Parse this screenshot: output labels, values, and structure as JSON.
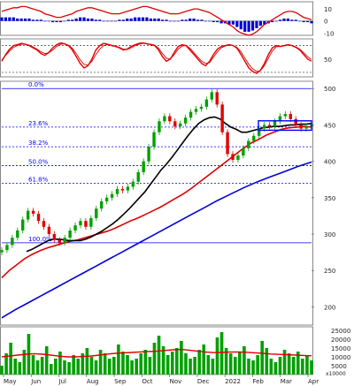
{
  "colors": {
    "fib_line": "#0000ff",
    "ma_short": "#000000",
    "ma_mid": "#e00000",
    "ma_long": "#0000dd",
    "candle_up": "#00a000",
    "candle_down": "#e00000",
    "macd_signal": "#e00000",
    "volume_bar": "#00a000",
    "box": "#0000ff"
  },
  "chart_data": [
    {
      "type": "bar",
      "name": "macd-panel",
      "ylim": [
        -12,
        16
      ],
      "y_ticks": [
        "10",
        "0",
        "-10"
      ],
      "histogram": [
        3,
        3,
        3,
        3,
        2,
        2,
        2,
        2,
        1,
        1,
        1,
        0,
        0,
        -1,
        -1,
        -1,
        0,
        1,
        1,
        2,
        3,
        3,
        2,
        2,
        1,
        1,
        0,
        0,
        0,
        0,
        1,
        1,
        2,
        2,
        3,
        3,
        3,
        3,
        2,
        2,
        2,
        1,
        1,
        0,
        0,
        0,
        1,
        1,
        2,
        2,
        1,
        1,
        0,
        0,
        -1,
        -1,
        -2,
        -2,
        -3,
        -3,
        -5,
        -7,
        -9,
        -9,
        -8,
        -6,
        -4,
        -3,
        -2,
        -1,
        0,
        1,
        2,
        2,
        1,
        1,
        0,
        -1,
        -1,
        -2
      ],
      "macd_line": [
        8,
        9,
        10,
        11,
        11,
        12,
        12,
        11,
        10,
        9,
        8,
        6,
        5,
        4,
        3,
        3,
        4,
        5,
        6,
        8,
        9,
        10,
        11,
        11,
        10,
        9,
        8,
        7,
        6,
        6,
        6,
        7,
        8,
        9,
        10,
        11,
        12,
        12,
        11,
        10,
        9,
        8,
        7,
        6,
        6,
        6,
        7,
        8,
        9,
        10,
        10,
        9,
        8,
        7,
        5,
        3,
        1,
        -1,
        -3,
        -5,
        -8,
        -10,
        -11,
        -12,
        -11,
        -9,
        -6,
        -3,
        -1,
        1,
        3,
        5,
        7,
        8,
        8,
        7,
        5,
        3,
        2,
        1
      ]
    },
    {
      "type": "line",
      "name": "oscillator-panel",
      "ylim": [
        10,
        95
      ],
      "y_ticks": [
        "50"
      ],
      "reference_levels": [
        80,
        20
      ],
      "series": [
        {
          "values": [
            45,
            60,
            72,
            80,
            82,
            85,
            83,
            80,
            75,
            70,
            62,
            58,
            65,
            75,
            82,
            86,
            84,
            80,
            70,
            55,
            40,
            30,
            35,
            50,
            70,
            80,
            85,
            83,
            80,
            78,
            75,
            70,
            72,
            78,
            82,
            85,
            86,
            84,
            82,
            80,
            70,
            55,
            45,
            50,
            65,
            78,
            82,
            80,
            70,
            60,
            50,
            40,
            35,
            45,
            60,
            72,
            78,
            80,
            82,
            80,
            74,
            60,
            45,
            30,
            22,
            18,
            25,
            40,
            60,
            75,
            80,
            78,
            80,
            82,
            80,
            76,
            70,
            60,
            50,
            45
          ]
        },
        {
          "values": [
            48,
            58,
            68,
            76,
            80,
            83,
            83,
            81,
            77,
            72,
            66,
            62,
            64,
            70,
            78,
            83,
            84,
            81,
            74,
            62,
            48,
            38,
            36,
            45,
            60,
            72,
            80,
            82,
            81,
            79,
            76,
            72,
            71,
            75,
            80,
            83,
            85,
            84,
            83,
            81,
            74,
            62,
            52,
            50,
            60,
            72,
            79,
            80,
            74,
            64,
            54,
            45,
            40,
            42,
            54,
            66,
            75,
            79,
            81,
            80,
            76,
            66,
            52,
            38,
            28,
            22,
            24,
            35,
            52,
            68,
            77,
            78,
            79,
            81,
            80,
            77,
            72,
            64,
            55,
            49
          ]
        }
      ]
    },
    {
      "type": "line",
      "name": "price-panel",
      "ylim": [
        175,
        510
      ],
      "y_ticks": [
        "500",
        "450",
        "400",
        "350",
        "300",
        "250",
        "200"
      ],
      "fibonacci_levels": [
        {
          "label": "0.0%",
          "value": 500
        },
        {
          "label": "23.6%",
          "value": 447
        },
        {
          "label": "38.2%",
          "value": 420
        },
        {
          "label": "50.0%",
          "value": 394
        },
        {
          "label": "61.8%",
          "value": 370
        },
        {
          "label": "100.0%",
          "value": 288
        }
      ],
      "x_ticks": [
        "May",
        "Jun",
        "Jul",
        "Aug",
        "Sep",
        "Oct",
        "Nov",
        "Dec",
        "2022",
        "Feb",
        "Mar",
        "Apr"
      ],
      "close": [
        278,
        285,
        295,
        305,
        320,
        332,
        328,
        318,
        310,
        300,
        292,
        288,
        295,
        305,
        312,
        318,
        310,
        322,
        335,
        345,
        350,
        355,
        362,
        360,
        365,
        372,
        385,
        400,
        420,
        440,
        455,
        462,
        455,
        448,
        452,
        460,
        468,
        472,
        475,
        485,
        495,
        478,
        440,
        410,
        402,
        408,
        418,
        428,
        435,
        445,
        450,
        448,
        455,
        462,
        465,
        458,
        450,
        445,
        448,
        450
      ],
      "ma_short": [
        276,
        279,
        283,
        287,
        291,
        293,
        293,
        292,
        291,
        291,
        291,
        293,
        296,
        300,
        304,
        309,
        314,
        320,
        327,
        334,
        342,
        350,
        358,
        368,
        378,
        388,
        396,
        405,
        415,
        425,
        435,
        444,
        452,
        457,
        460,
        461,
        458,
        452,
        447,
        444,
        440,
        440,
        442,
        444,
        446,
        447,
        448,
        448,
        449,
        450,
        450,
        451,
        451,
        452
      ],
      "ma_mid": [
        240,
        250,
        258,
        266,
        272,
        277,
        281,
        284,
        287,
        290,
        292,
        295,
        298,
        301,
        304,
        308,
        313,
        318,
        322,
        327,
        332,
        337,
        343,
        349,
        355,
        362,
        370,
        378,
        386,
        394,
        402,
        410,
        418,
        425,
        430,
        436,
        440,
        444,
        446,
        447,
        448,
        447
      ],
      "ma_long": [
        185,
        196,
        206,
        216,
        226,
        236,
        246,
        256,
        266,
        276,
        286,
        296,
        306,
        316,
        326,
        336,
        346,
        355,
        364,
        372,
        379,
        386,
        393,
        399
      ],
      "box": {
        "from": 450,
        "to": 452,
        "label": ""
      }
    },
    {
      "type": "bar",
      "name": "volume-panel",
      "ylim": [
        0,
        27000
      ],
      "y_ticks": [
        "25000",
        "20000",
        "15000",
        "10000",
        "5000"
      ],
      "units_label": "x10000",
      "values": [
        5000,
        12000,
        18000,
        9000,
        7000,
        14000,
        23000,
        11000,
        8000,
        10000,
        16000,
        6000,
        9000,
        13000,
        8000,
        7000,
        11000,
        9000,
        12000,
        15000,
        10000,
        8000,
        14000,
        12000,
        9000,
        10000,
        17000,
        13000,
        11000,
        8000,
        9000,
        12000,
        14000,
        10000,
        18000,
        22000,
        16000,
        11000,
        13000,
        15000,
        19000,
        12000,
        9000,
        10000,
        14000,
        17000,
        11000,
        9000,
        21000,
        24000,
        15000,
        12000,
        10000,
        13000,
        16000,
        9000,
        8000,
        11000,
        19000,
        15000,
        9000,
        7000,
        10000,
        14000,
        12000,
        10000,
        13000,
        9000,
        11000,
        8000
      ],
      "ma": [
        10000,
        10500,
        11000,
        11500,
        11800,
        11500,
        11000,
        10400,
        10000,
        10000,
        10200,
        10500,
        11000,
        11600,
        12000,
        12300,
        12500,
        12800,
        13000,
        13200,
        13600,
        14000,
        14200,
        13800,
        13200,
        12700,
        12400,
        12500,
        12700,
        12800,
        12600,
        12300,
        12000,
        11600,
        11400,
        11200,
        11000,
        10800,
        10600
      ]
    }
  ]
}
